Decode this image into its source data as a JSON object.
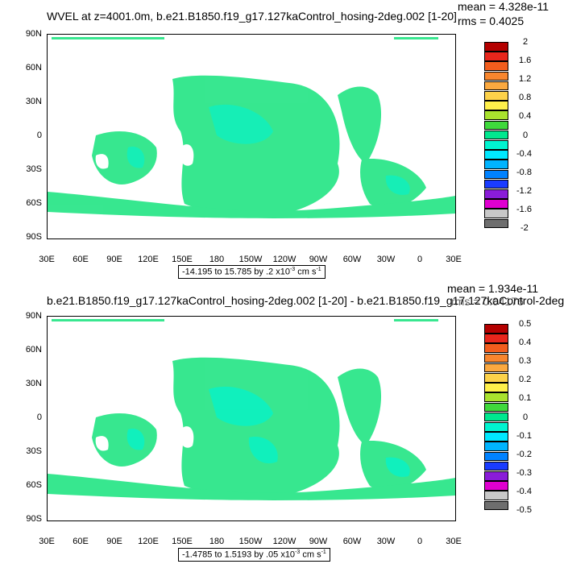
{
  "panels": [
    {
      "title": "WVEL at z=4001.0m, b.e21.B1850.f19_g17.127kaControl_hosing-2deg.002 [1-20]",
      "mean": "mean = 4.328e-11",
      "rms": "rms = 0.4025",
      "y_ticks": [
        "90N",
        "60N",
        "30N",
        "0",
        "30S",
        "60S",
        "90S"
      ],
      "x_ticks": [
        "30E",
        "60E",
        "90E",
        "120E",
        "150E",
        "180",
        "150W",
        "120W",
        "90W",
        "60W",
        "30W",
        "0",
        "30E"
      ],
      "range_prefix": "-14.195 to 15.785 by .2 x10",
      "range_exp": "-3",
      "range_unit": " cm s",
      "range_unit_exp": "-1",
      "colorbar_labels": [
        "2",
        "1.6",
        "1.2",
        "0.8",
        "0.4",
        "0",
        "-0.4",
        "-0.8",
        "-1.2",
        "-1.6",
        "-2"
      ]
    },
    {
      "title": "b.e21.B1850.f19_g17.127kaControl_hosing-2deg.002 [1-20] - b.e21.B1850.f19_g17.127kaControl-2deg.",
      "mean": "mean = 1.934e-11",
      "rms": "rms = 0.04176",
      "y_ticks": [
        "90N",
        "60N",
        "30N",
        "0",
        "30S",
        "60S",
        "90S"
      ],
      "x_ticks": [
        "30E",
        "60E",
        "90E",
        "120E",
        "150E",
        "180",
        "150W",
        "120W",
        "90W",
        "60W",
        "30W",
        "0",
        "30E"
      ],
      "range_prefix": "-1.4785 to 1.5193 by .05 x10",
      "range_exp": "-3",
      "range_unit": " cm s",
      "range_unit_exp": "-1",
      "colorbar_labels": [
        "0.5",
        "0.4",
        "0.3",
        "0.2",
        "0.1",
        "0",
        "-0.1",
        "-0.2",
        "-0.3",
        "-0.4",
        "-0.5"
      ]
    }
  ],
  "colorbar_colors": [
    "#b40000",
    "#e8261c",
    "#f25d1d",
    "#f8862e",
    "#fba940",
    "#fdd24a",
    "#fff04b",
    "#a9e22e",
    "#3fd93c",
    "#00e88f",
    "#00f4d0",
    "#00e8ff",
    "#00b4ff",
    "#0082ff",
    "#1a3cff",
    "#8a1cd8",
    "#e000d0",
    "#c8c8c8",
    "#6e6e6e"
  ],
  "ocean_color": "#2de68a"
}
